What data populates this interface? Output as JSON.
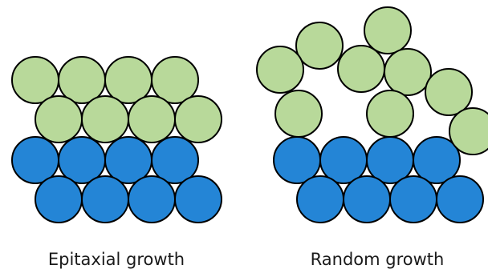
{
  "captions": {
    "epitaxial": "Epitaxial growth",
    "random": "Random growth"
  },
  "colors": {
    "substrate": "#2485d6",
    "overlayer": "#b8d99a",
    "outline": "#000000"
  }
}
